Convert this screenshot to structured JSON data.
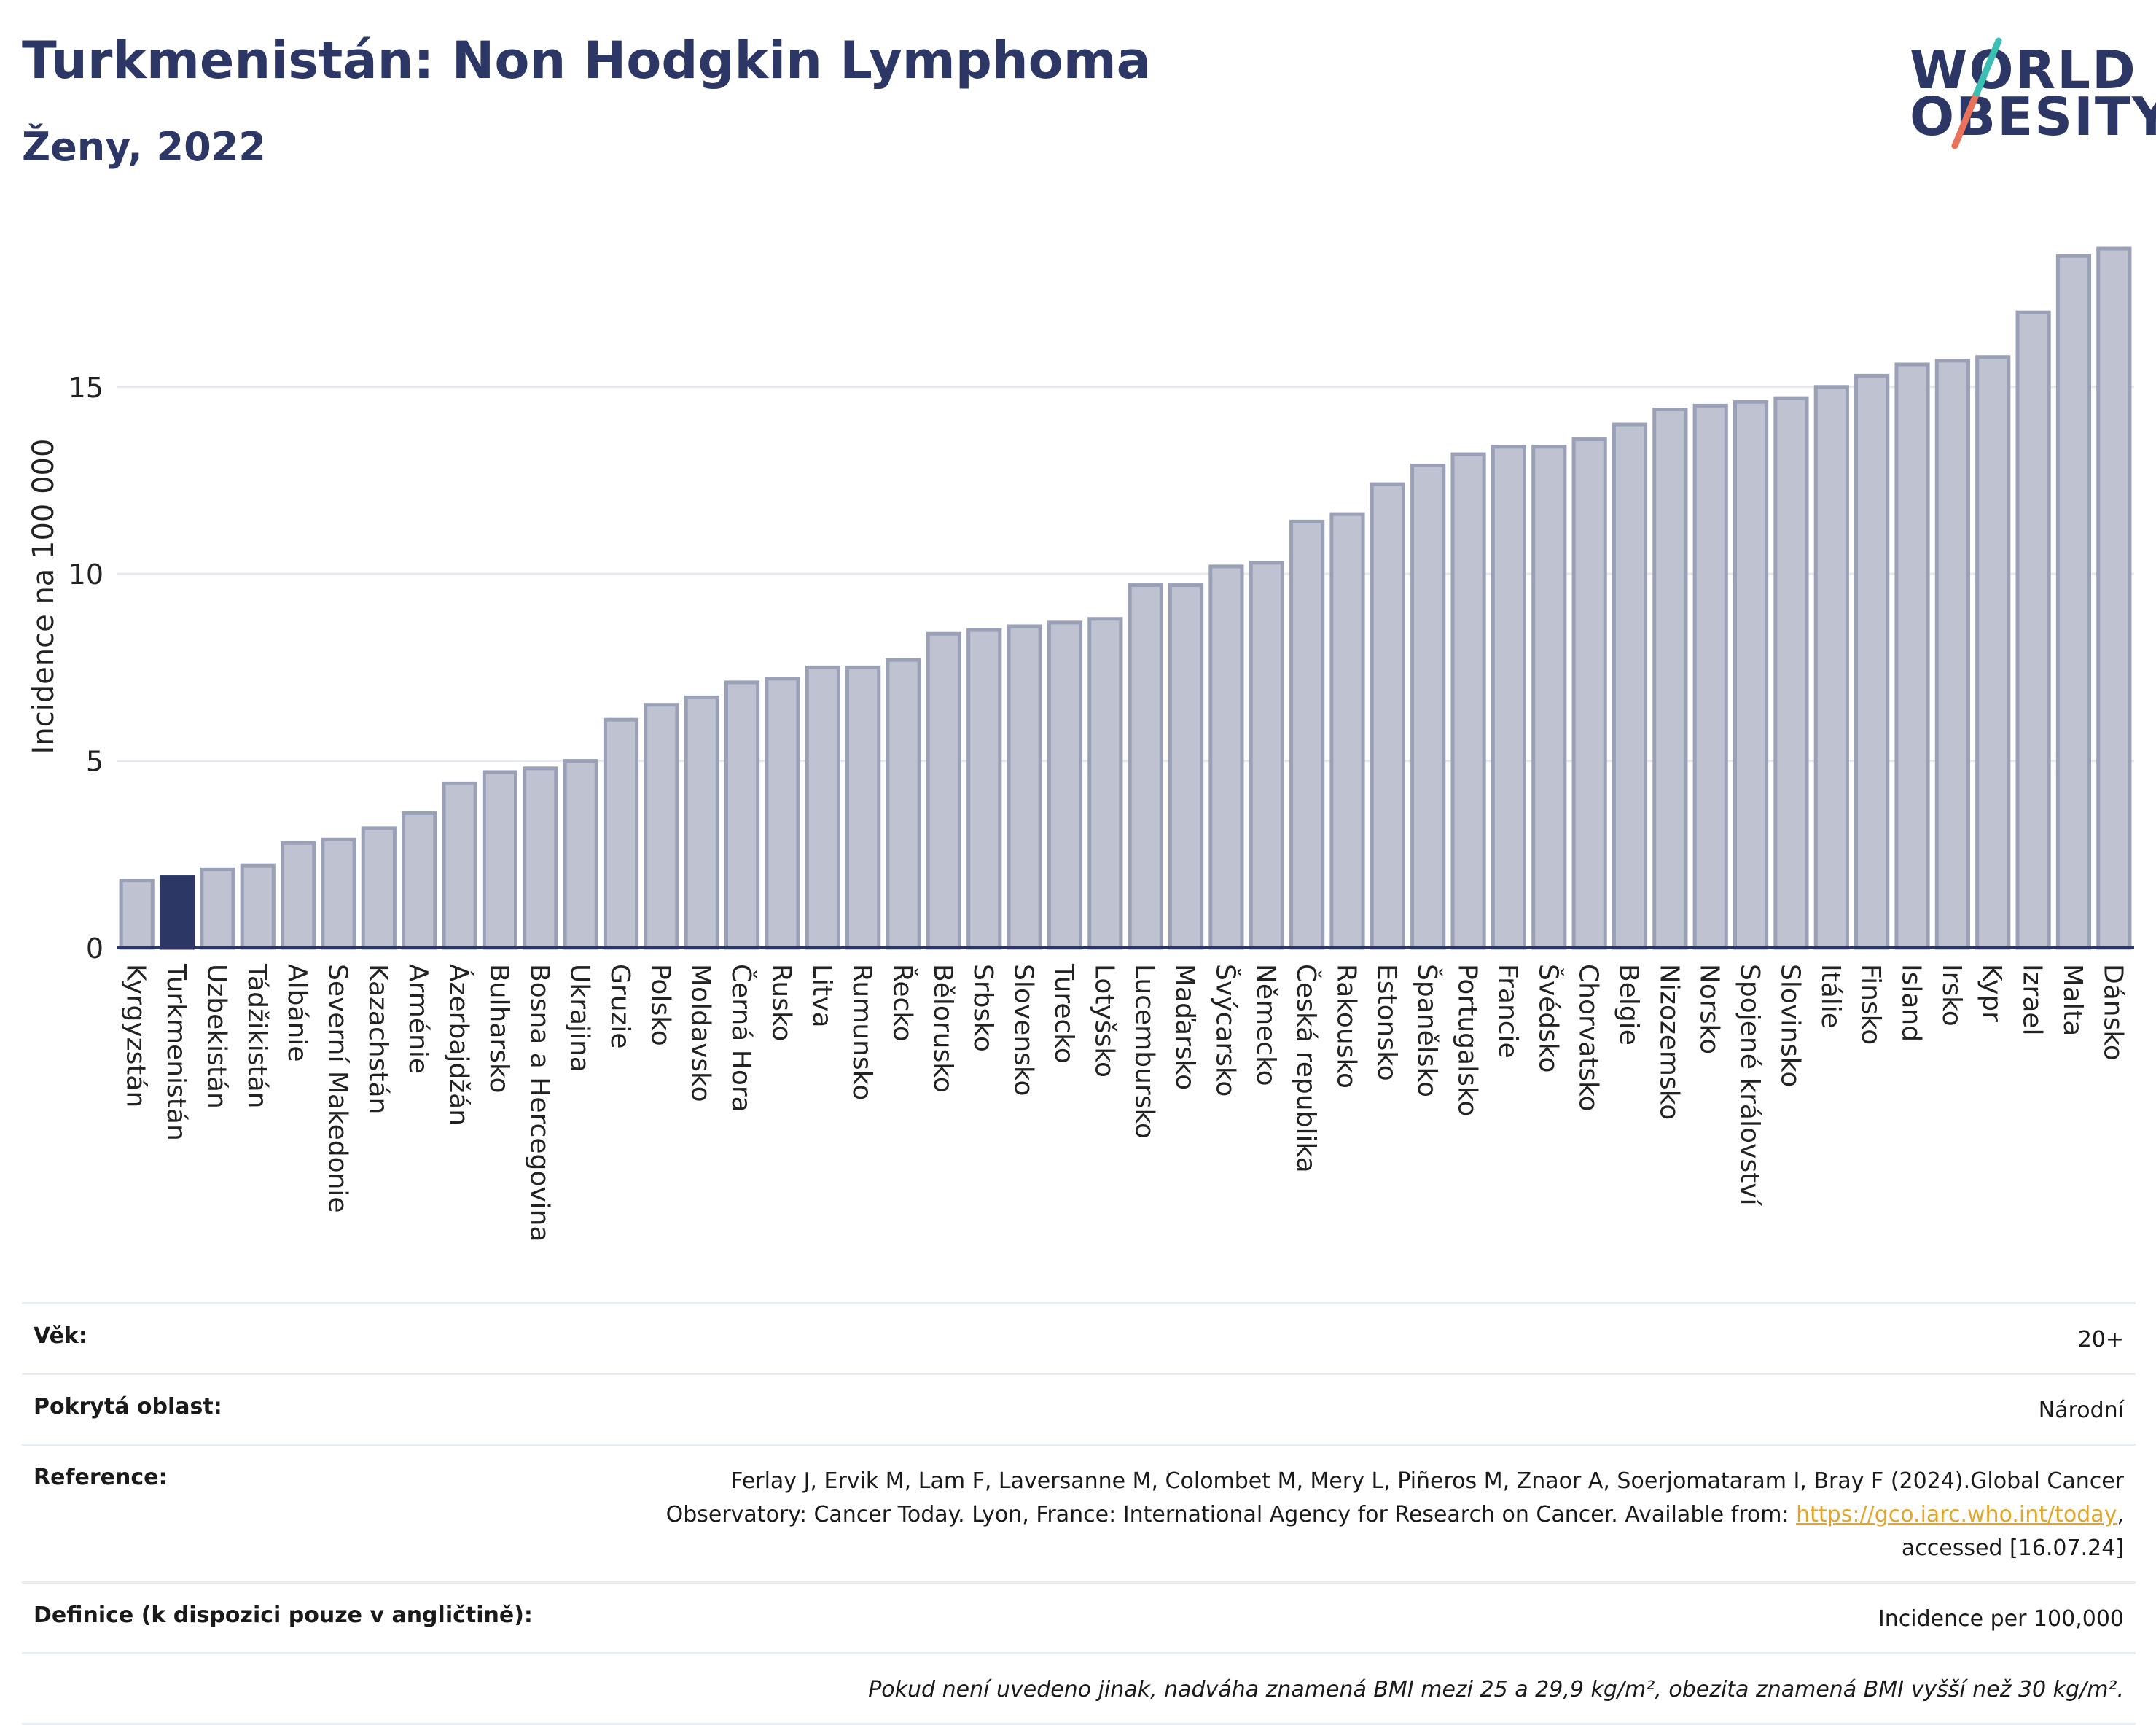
{
  "header": {
    "title": "Turkmenistán: Non Hodgkin Lymphoma",
    "subtitle": "Ženy, 2022"
  },
  "logo": {
    "line1": "WORLD",
    "line2": "OBESITY"
  },
  "chart_data": {
    "type": "bar",
    "title": "Turkmenistán: Non Hodgkin Lymphoma",
    "subtitle": "Ženy, 2022",
    "xlabel": "",
    "ylabel": "Incidence na 100 000",
    "ylim": [
      0,
      19.5
    ],
    "yticks": [
      0,
      5,
      10,
      15
    ],
    "grid": true,
    "highlight": "Turkmenistán",
    "colors": {
      "default": "#bec2d1",
      "default_edge": "#9aa0b6",
      "highlight": "#2c3766"
    },
    "categories": [
      "Kyrgyzstán",
      "Turkmenistán",
      "Uzbekistán",
      "Tádžikistán",
      "Albánie",
      "Severní Makedonie",
      "Kazachstán",
      "Arménie",
      "Ázerbajdžán",
      "Bulharsko",
      "Bosna a Hercegovina",
      "Ukrajina",
      "Gruzie",
      "Polsko",
      "Moldavsko",
      "Černá Hora",
      "Rusko",
      "Litva",
      "Rumunsko",
      "Řecko",
      "Bělorusko",
      "Srbsko",
      "Slovensko",
      "Turecko",
      "Lotyšsko",
      "Lucembursko",
      "Maďarsko",
      "Švýcarsko",
      "Německo",
      "Česká republika",
      "Rakousko",
      "Estonsko",
      "Španělsko",
      "Portugalsko",
      "Francie",
      "Švédsko",
      "Chorvatsko",
      "Belgie",
      "Nizozemsko",
      "Norsko",
      "Spojené království",
      "Slovinsko",
      "Itálie",
      "Finsko",
      "Island",
      "Irsko",
      "Kypr",
      "Izrael",
      "Malta",
      "Dánsko"
    ],
    "values": [
      1.8,
      1.9,
      2.1,
      2.2,
      2.8,
      2.9,
      3.2,
      3.6,
      4.4,
      4.7,
      4.8,
      5.0,
      6.1,
      6.5,
      6.7,
      7.1,
      7.2,
      7.5,
      7.5,
      7.7,
      8.4,
      8.5,
      8.6,
      8.7,
      8.8,
      9.7,
      9.7,
      10.2,
      10.3,
      11.4,
      11.6,
      12.4,
      12.9,
      13.2,
      13.4,
      13.4,
      13.6,
      14.0,
      14.4,
      14.5,
      14.6,
      14.7,
      15.0,
      15.3,
      15.6,
      15.7,
      15.8,
      17.0,
      18.5,
      18.7
    ]
  },
  "info": {
    "rows": [
      {
        "label": "Věk:",
        "value": "20+"
      },
      {
        "label": "Pokrytá oblast:",
        "value": "Národní"
      },
      {
        "label": "Reference:",
        "value": "Ferlay J, Ervik M, Lam F, Laversanne M, Colombet M, Mery L, Piñeros M, Znaor A, Soerjomataram I, Bray F (2024).Global Cancer Observatory: Cancer Today. Lyon, France: International Agency for Research on Cancer. Available from: ",
        "link": "https://gco.iarc.who.int/today",
        "value_after": ", accessed [16.07.24]"
      },
      {
        "label": "Definice (k dispozici pouze v angličtině):",
        "value": "Incidence per 100,000"
      }
    ],
    "footnote": "Pokud není uvedeno jinak, nadváha znamená BMI mezi 25 a 29,9 kg/m², obezita znamená BMI vyšší než 30 kg/m²."
  }
}
